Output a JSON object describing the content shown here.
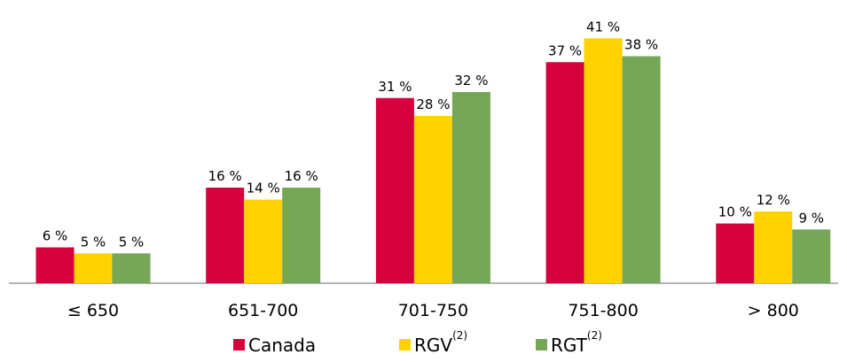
{
  "chart_data": {
    "type": "bar",
    "categories": [
      "≤ 650",
      "651-700",
      "701-750",
      "751-800",
      "> 800"
    ],
    "series": [
      {
        "name": "Canada",
        "color": "#d5003c",
        "values": [
          6,
          16,
          31,
          37,
          10
        ],
        "value_labels": [
          "6 %",
          "16 %",
          "31 %",
          "37 %",
          "10 %"
        ]
      },
      {
        "name": "RGV",
        "note": "(2)",
        "color": "#ffd200",
        "values": [
          5,
          14,
          28,
          41,
          12
        ],
        "value_labels": [
          "5 %",
          "14 %",
          "28 %",
          "41 %",
          "12 %"
        ]
      },
      {
        "name": "RGT",
        "note": "(2)",
        "color": "#76a758",
        "values": [
          5,
          16,
          32,
          38,
          9
        ],
        "value_labels": [
          "5 %",
          "16 %",
          "32 %",
          "38 %",
          "9 %"
        ]
      }
    ],
    "legend": "bottom"
  }
}
